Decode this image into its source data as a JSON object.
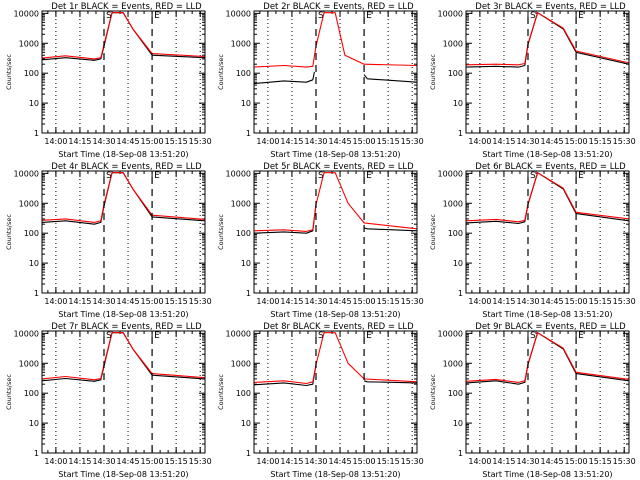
{
  "chart_data": [
    {
      "type": "line",
      "title": "Det 1r BLACK = Events, RED = LLD",
      "xlabel": "Start Time (18-Sep-08 13:51:20)",
      "ylabel": "Counts/sec",
      "xticks": [
        "14:00",
        "14:15",
        "14:30",
        "14:45",
        "15:00",
        "15:15",
        "15:30"
      ],
      "yticks": [
        "1",
        "10",
        "100",
        "1000",
        "10000"
      ],
      "yscale": "log",
      "ylim": [
        1,
        12000
      ],
      "xlim": [
        "13:51:20",
        "15:33:00"
      ],
      "markers": {
        "S": "14:30",
        "E": "15:00"
      },
      "series": [
        {
          "name": "BLACK = Events",
          "color": "#000000",
          "x": [
            "13:51:20",
            "14:06",
            "14:24",
            "14:28",
            "14:30",
            "14:35",
            "14:42",
            "14:48",
            "15:00",
            "15:33"
          ],
          "y": [
            280,
            330,
            270,
            300,
            800,
            10500,
            10500,
            3000,
            400,
            330
          ]
        },
        {
          "name": "RED = LLD",
          "color": "#ff0000",
          "x": [
            "13:51:20",
            "14:06",
            "14:24",
            "14:28",
            "14:30",
            "14:35",
            "14:42",
            "14:48",
            "15:00",
            "15:33"
          ],
          "y": [
            320,
            380,
            300,
            330,
            900,
            10500,
            10500,
            3000,
            450,
            360
          ]
        }
      ]
    },
    {
      "type": "line",
      "title": "Det 2r BLACK = Events, RED = LLD",
      "xlabel": "Start Time (18-Sep-08 13:51:20)",
      "ylabel": "Counts/sec",
      "xticks": [
        "14:00",
        "14:15",
        "14:30",
        "14:45",
        "15:00",
        "15:15",
        "15:30"
      ],
      "yticks": [
        "1",
        "10",
        "100",
        "1000",
        "10000"
      ],
      "yscale": "log",
      "ylim": [
        1,
        12000
      ],
      "xlim": [
        "13:51:20",
        "15:33:00"
      ],
      "markers": {
        "S": "14:30",
        "E": "15:00"
      },
      "series": [
        {
          "name": "BLACK = Events",
          "color": "#000000",
          "x": [
            "13:51:20",
            "14:10",
            "14:24",
            "14:28",
            "14:29",
            "14:40",
            "15:00",
            "15:02",
            "15:33"
          ],
          "y": [
            45,
            55,
            50,
            60,
            110,
            null,
            90,
            65,
            50
          ]
        },
        {
          "name": "RED = LLD",
          "color": "#ff0000",
          "x": [
            "13:51:20",
            "14:10",
            "14:24",
            "14:28",
            "14:30",
            "14:35",
            "14:42",
            "14:48",
            "15:00",
            "15:33"
          ],
          "y": [
            160,
            180,
            160,
            170,
            800,
            10500,
            10500,
            400,
            200,
            180
          ]
        }
      ]
    },
    {
      "type": "line",
      "title": "Det 3r BLACK = Events, RED = LLD",
      "xlabel": "Start Time (18-Sep-08 13:51:20)",
      "ylabel": "Counts/sec",
      "xticks": [
        "14:00",
        "14:15",
        "14:30",
        "14:45",
        "15:00",
        "15:15",
        "15:30"
      ],
      "yticks": [
        "1",
        "10",
        "100",
        "1000",
        "10000"
      ],
      "yscale": "log",
      "ylim": [
        1,
        12000
      ],
      "xlim": [
        "13:51:20",
        "15:33:00"
      ],
      "markers": {
        "S": "14:30",
        "E": "15:00"
      },
      "series": [
        {
          "name": "BLACK = Events",
          "color": "#000000",
          "x": [
            "13:51:20",
            "14:10",
            "14:24",
            "14:28",
            "14:30",
            "14:36",
            "14:52",
            "15:00",
            "15:33"
          ],
          "y": [
            160,
            170,
            160,
            180,
            900,
            10500,
            3000,
            500,
            200
          ]
        },
        {
          "name": "RED = LLD",
          "color": "#ff0000",
          "x": [
            "13:51:20",
            "14:10",
            "14:24",
            "14:28",
            "14:30",
            "14:36",
            "14:52",
            "15:00",
            "15:33"
          ],
          "y": [
            190,
            200,
            190,
            210,
            950,
            10500,
            3200,
            550,
            220
          ]
        }
      ]
    },
    {
      "type": "line",
      "title": "Det 4r BLACK = Events, RED = LLD",
      "xlabel": "Start Time (18-Sep-08 13:51:20)",
      "ylabel": "Counts/sec",
      "xticks": [
        "14:00",
        "14:15",
        "14:30",
        "14:45",
        "15:00",
        "15:15",
        "15:30"
      ],
      "yticks": [
        "1",
        "10",
        "100",
        "1000",
        "10000"
      ],
      "yscale": "log",
      "ylim": [
        1,
        12000
      ],
      "xlim": [
        "13:51:20",
        "15:33:00"
      ],
      "markers": {
        "S": "14:30",
        "E": "15:00"
      },
      "series": [
        {
          "name": "BLACK = Events",
          "color": "#000000",
          "x": [
            "13:51:20",
            "14:06",
            "14:24",
            "14:28",
            "14:30",
            "14:35",
            "14:42",
            "14:48",
            "15:00",
            "15:33"
          ],
          "y": [
            230,
            260,
            200,
            230,
            800,
            10500,
            10500,
            3000,
            350,
            260
          ]
        },
        {
          "name": "RED = LLD",
          "color": "#ff0000",
          "x": [
            "13:51:20",
            "14:06",
            "14:24",
            "14:28",
            "14:30",
            "14:35",
            "14:42",
            "14:48",
            "15:00",
            "15:33"
          ],
          "y": [
            270,
            300,
            230,
            260,
            900,
            10500,
            10500,
            3000,
            400,
            290
          ]
        }
      ]
    },
    {
      "type": "line",
      "title": "Det 5r BLACK = Events, RED = LLD",
      "xlabel": "Start Time (18-Sep-08 13:51:20)",
      "ylabel": "Counts/sec",
      "xticks": [
        "14:00",
        "14:15",
        "14:30",
        "14:45",
        "15:00",
        "15:15",
        "15:30"
      ],
      "yticks": [
        "1",
        "10",
        "100",
        "1000",
        "10000"
      ],
      "yscale": "log",
      "ylim": [
        1,
        12000
      ],
      "xlim": [
        "13:51:20",
        "15:33:00"
      ],
      "markers": {
        "S": "14:30",
        "E": "15:00"
      },
      "series": [
        {
          "name": "BLACK = Events",
          "color": "#000000",
          "x": [
            "13:51:20",
            "14:10",
            "14:24",
            "14:28",
            "14:30",
            "14:40",
            "15:00",
            "15:02",
            "15:33"
          ],
          "y": [
            100,
            110,
            100,
            120,
            900,
            null,
            150,
            140,
            120
          ]
        },
        {
          "name": "RED = LLD",
          "color": "#ff0000",
          "x": [
            "13:51:20",
            "14:10",
            "14:24",
            "14:28",
            "14:30",
            "14:35",
            "14:42",
            "14:50",
            "15:00",
            "15:33"
          ],
          "y": [
            120,
            130,
            115,
            130,
            900,
            10500,
            10500,
            1000,
            220,
            140
          ]
        }
      ]
    },
    {
      "type": "line",
      "title": "Det 6r BLACK = Events, RED = LLD",
      "xlabel": "Start Time (18-Sep-08 13:51:20)",
      "ylabel": "Counts/sec",
      "xticks": [
        "14:00",
        "14:15",
        "14:30",
        "14:45",
        "15:00",
        "15:15",
        "15:30"
      ],
      "yticks": [
        "1",
        "10",
        "100",
        "1000",
        "10000"
      ],
      "yscale": "log",
      "ylim": [
        1,
        12000
      ],
      "xlim": [
        "13:51:20",
        "15:33:00"
      ],
      "markers": {
        "S": "14:30",
        "E": "15:00"
      },
      "series": [
        {
          "name": "BLACK = Events",
          "color": "#000000",
          "x": [
            "13:51:20",
            "14:10",
            "14:24",
            "14:28",
            "14:30",
            "14:36",
            "14:52",
            "15:00",
            "15:33"
          ],
          "y": [
            220,
            250,
            210,
            240,
            900,
            10500,
            3000,
            450,
            260
          ]
        },
        {
          "name": "RED = LLD",
          "color": "#ff0000",
          "x": [
            "13:51:20",
            "14:10",
            "14:24",
            "14:28",
            "14:30",
            "14:36",
            "14:52",
            "15:00",
            "15:33"
          ],
          "y": [
            260,
            290,
            240,
            270,
            950,
            10500,
            3200,
            500,
            300
          ]
        }
      ]
    },
    {
      "type": "line",
      "title": "Det 7r BLACK = Events, RED = LLD",
      "xlabel": "Start Time (18-Sep-08 13:51:20)",
      "ylabel": "Counts/sec",
      "xticks": [
        "14:00",
        "14:15",
        "14:30",
        "14:45",
        "15:00",
        "15:15",
        "15:30"
      ],
      "yticks": [
        "1",
        "10",
        "100",
        "1000",
        "10000"
      ],
      "yscale": "log",
      "ylim": [
        1,
        12000
      ],
      "xlim": [
        "13:51:20",
        "15:33:00"
      ],
      "markers": {
        "S": "14:30",
        "E": "15:00"
      },
      "series": [
        {
          "name": "BLACK = Events",
          "color": "#000000",
          "x": [
            "13:51:20",
            "14:06",
            "14:24",
            "14:28",
            "14:30",
            "14:35",
            "14:42",
            "14:48",
            "15:00",
            "15:33"
          ],
          "y": [
            260,
            310,
            250,
            280,
            800,
            10500,
            10500,
            3000,
            400,
            300
          ]
        },
        {
          "name": "RED = LLD",
          "color": "#ff0000",
          "x": [
            "13:51:20",
            "14:06",
            "14:24",
            "14:28",
            "14:30",
            "14:35",
            "14:42",
            "14:48",
            "15:00",
            "15:33"
          ],
          "y": [
            300,
            360,
            280,
            310,
            900,
            10500,
            10500,
            3000,
            450,
            330
          ]
        }
      ]
    },
    {
      "type": "line",
      "title": "Det 8r BLACK = Events, RED = LLD",
      "xlabel": "Start Time (18-Sep-08 13:51:20)",
      "ylabel": "Counts/sec",
      "xticks": [
        "14:00",
        "14:15",
        "14:30",
        "14:45",
        "15:00",
        "15:15",
        "15:30"
      ],
      "yticks": [
        "1",
        "10",
        "100",
        "1000",
        "10000"
      ],
      "yscale": "log",
      "ylim": [
        1,
        12000
      ],
      "xlim": [
        "13:51:20",
        "15:33:00"
      ],
      "markers": {
        "S": "14:30",
        "E": "15:00"
      },
      "series": [
        {
          "name": "BLACK = Events",
          "color": "#000000",
          "x": [
            "13:51:20",
            "14:10",
            "14:24",
            "14:28",
            "14:30",
            "14:40",
            "15:00",
            "15:02",
            "15:33"
          ],
          "y": [
            190,
            220,
            180,
            200,
            900,
            null,
            260,
            240,
            220
          ]
        },
        {
          "name": "RED = LLD",
          "color": "#ff0000",
          "x": [
            "13:51:20",
            "14:10",
            "14:24",
            "14:28",
            "14:30",
            "14:35",
            "14:42",
            "14:50",
            "15:00",
            "15:33"
          ],
          "y": [
            230,
            260,
            210,
            240,
            900,
            10500,
            10500,
            1000,
            300,
            240
          ]
        }
      ]
    },
    {
      "type": "line",
      "title": "Det 9r BLACK = Events, RED = LLD",
      "xlabel": "Start Time (18-Sep-08 13:51:20)",
      "ylabel": "Counts/sec",
      "xticks": [
        "14:00",
        "14:15",
        "14:30",
        "14:45",
        "15:00",
        "15:15",
        "15:30"
      ],
      "yticks": [
        "1",
        "10",
        "100",
        "1000",
        "10000"
      ],
      "yscale": "log",
      "ylim": [
        1,
        12000
      ],
      "xlim": [
        "13:51:20",
        "15:33:00"
      ],
      "markers": {
        "S": "14:30",
        "E": "15:00"
      },
      "series": [
        {
          "name": "BLACK = Events",
          "color": "#000000",
          "x": [
            "13:51:20",
            "14:10",
            "14:24",
            "14:28",
            "14:30",
            "14:36",
            "14:52",
            "15:00",
            "15:33"
          ],
          "y": [
            220,
            260,
            200,
            230,
            900,
            10500,
            3000,
            450,
            260
          ]
        },
        {
          "name": "RED = LLD",
          "color": "#ff0000",
          "x": [
            "13:51:20",
            "14:10",
            "14:24",
            "14:28",
            "14:30",
            "14:36",
            "14:52",
            "15:00",
            "15:33"
          ],
          "y": [
            250,
            290,
            230,
            260,
            950,
            10500,
            3200,
            500,
            290
          ]
        }
      ]
    }
  ]
}
